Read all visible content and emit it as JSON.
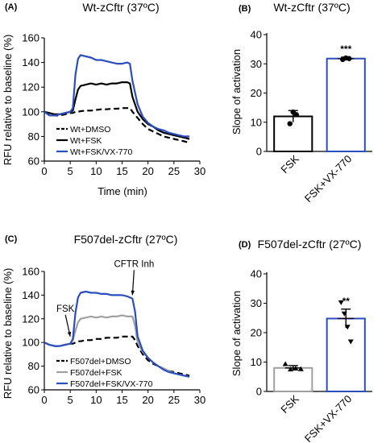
{
  "chart_data": [
    {
      "panel": "(A)",
      "type": "line",
      "title": "Wt-zCftr (37ºC)",
      "xlabel": "Time (min)",
      "ylabel": "RFU relative to baseline (%)",
      "xlim": [
        0,
        30
      ],
      "ylim": [
        60,
        160
      ],
      "xticks": [
        "0",
        "5",
        "10",
        "15",
        "20",
        "25",
        "30"
      ],
      "yticks": [
        "60",
        "80",
        "100",
        "120",
        "140",
        "160"
      ],
      "legend_position": "bottom-left",
      "annotations": [],
      "series": [
        {
          "name": "Wt+DMSO",
          "color": "#000000",
          "dash": "dashed",
          "x": [
            0,
            1,
            2,
            3,
            4,
            5,
            5.5,
            6,
            6.5,
            7,
            8,
            9,
            10,
            11,
            12,
            13,
            14,
            15,
            16,
            16.5,
            17,
            18,
            19,
            20,
            21,
            22,
            23,
            24,
            25,
            26,
            27,
            28
          ],
          "y": [
            100,
            98,
            97,
            97,
            98,
            99,
            99,
            100,
            100,
            100.5,
            101,
            101,
            101.5,
            102,
            102,
            102.5,
            102.5,
            103,
            103,
            103,
            100,
            95,
            90,
            86,
            84,
            82,
            80,
            79,
            78,
            77,
            76,
            75
          ]
        },
        {
          "name": "Wt+FSK",
          "color": "#000000",
          "dash": "solid",
          "x": [
            0,
            1,
            2,
            3,
            4,
            5,
            5.5,
            6,
            6.5,
            7,
            8,
            9,
            10,
            11,
            12,
            13,
            14,
            15,
            16,
            16.5,
            17,
            18,
            19,
            20,
            21,
            22,
            23,
            24,
            25,
            26,
            27,
            28
          ],
          "y": [
            100,
            99,
            98,
            98,
            99,
            100,
            101,
            110,
            118,
            121,
            122,
            123,
            122,
            123,
            122,
            123,
            123,
            124,
            124,
            123,
            112,
            100,
            94,
            90,
            88,
            85,
            83,
            82,
            81,
            80,
            79,
            78
          ]
        },
        {
          "name": "Wt+FSK/VX-770",
          "color": "#2a4dbf",
          "dash": "solid",
          "x": [
            0,
            1,
            2,
            3,
            4,
            5,
            5.5,
            6,
            6.5,
            7,
            8,
            9,
            10,
            11,
            12,
            13,
            14,
            15,
            16,
            16.5,
            17,
            18,
            19,
            20,
            21,
            22,
            23,
            24,
            25,
            26,
            27,
            28
          ],
          "y": [
            100,
            97,
            97,
            98,
            99,
            100,
            103,
            130,
            143,
            146,
            145,
            144,
            142,
            142,
            141,
            140,
            139,
            139,
            140,
            139,
            125,
            106,
            96,
            91,
            88,
            86,
            85,
            83,
            82,
            81,
            80,
            80
          ]
        }
      ]
    },
    {
      "panel": "(B)",
      "type": "bar",
      "title": "Wt-zCftr (37ºC)",
      "xlabel": "",
      "ylabel": "Slope of activation",
      "ylim": [
        0,
        40
      ],
      "yticks": [
        "0",
        "10",
        "20",
        "30",
        "40"
      ],
      "categories": [
        "FSK",
        "FSK+VX-770"
      ],
      "values": [
        12,
        31.8
      ],
      "errors": [
        2,
        0.5
      ],
      "bar_colors": [
        "#000000",
        "#2a4dbf"
      ],
      "points": [
        [
          9.5,
          13.5,
          12.6
        ],
        [
          31.5,
          32,
          31.8
        ]
      ],
      "significance": [
        "",
        "***"
      ]
    },
    {
      "panel": "(C)",
      "type": "line",
      "title": "F507del-zCftr (27ºC)",
      "xlabel": "",
      "ylabel": "RFU relative to baseline (%)",
      "xlim": [
        0,
        30
      ],
      "ylim": [
        60,
        160
      ],
      "xticks": [
        "0",
        "5",
        "10",
        "15",
        "20",
        "25",
        "30"
      ],
      "yticks": [
        "60",
        "80",
        "100",
        "120",
        "140",
        "160"
      ],
      "legend_position": "bottom-left",
      "annotations": [
        {
          "label": "FSK",
          "x": 5,
          "y": 103
        },
        {
          "label": "CFTR Inh",
          "x": 17,
          "y": 138
        }
      ],
      "series": [
        {
          "name": "F507del+DMSO",
          "color": "#000000",
          "dash": "dashed",
          "x": [
            0,
            1,
            2,
            3,
            4,
            5,
            5.5,
            6,
            6.5,
            7,
            8,
            9,
            10,
            11,
            12,
            13,
            14,
            15,
            16,
            17,
            17.5,
            18,
            19,
            20,
            21,
            22,
            23,
            24,
            25,
            26,
            27,
            28
          ],
          "y": [
            100,
            98,
            97,
            97,
            98,
            99,
            99,
            100,
            101,
            101,
            102,
            102,
            103,
            103,
            104,
            104,
            104,
            105,
            105,
            105,
            102,
            97,
            90,
            85,
            82,
            80,
            78,
            76,
            75,
            74,
            73,
            72
          ]
        },
        {
          "name": "F507del+FSK",
          "color": "#a0a0a0",
          "dash": "solid",
          "x": [
            0,
            1,
            2,
            3,
            4,
            5,
            5.5,
            6,
            6.5,
            7,
            8,
            9,
            10,
            11,
            12,
            13,
            14,
            15,
            16,
            17,
            17.5,
            18,
            19,
            20,
            21,
            22,
            23,
            24,
            25,
            26,
            27,
            28
          ],
          "y": [
            100,
            98,
            97,
            97,
            98,
            99,
            102,
            110,
            117,
            120,
            121,
            122,
            121,
            122,
            121,
            122,
            122,
            123,
            122,
            122,
            114,
            100,
            92,
            87,
            83,
            80,
            78,
            76,
            74,
            73,
            72,
            71
          ]
        },
        {
          "name": "F507del+FSK/VX-770",
          "color": "#2a4dbf",
          "dash": "solid",
          "x": [
            0,
            1,
            2,
            3,
            4,
            5,
            5.5,
            6,
            6.5,
            7,
            8,
            9,
            10,
            11,
            12,
            13,
            14,
            15,
            16,
            17,
            17.5,
            18,
            19,
            20,
            21,
            22,
            23,
            24,
            25,
            26,
            27,
            28
          ],
          "y": [
            100,
            98,
            97,
            97,
            98,
            99,
            103,
            125,
            138,
            142,
            143,
            142,
            142,
            141,
            141,
            140,
            140,
            140,
            139,
            137,
            126,
            105,
            93,
            87,
            83,
            80,
            77,
            75,
            74,
            73,
            72,
            71
          ]
        }
      ]
    },
    {
      "panel": "(D)",
      "type": "bar",
      "title": "F507del-zCftr (27ºC)",
      "xlabel": "",
      "ylabel": "Slope of activation",
      "ylim": [
        0,
        40
      ],
      "yticks": [
        "0",
        "10",
        "20",
        "30",
        "40"
      ],
      "categories": [
        "FSK",
        "FSK+VX-770"
      ],
      "values": [
        8,
        24.8
      ],
      "errors": [
        0.8,
        3.2
      ],
      "bar_colors": [
        "#a0a0a0",
        "#2a4dbf"
      ],
      "points": [
        [
          9.3,
          7.5,
          7.8,
          7.6
        ],
        [
          30.3,
          26.5,
          22,
          17
        ]
      ],
      "significance": [
        "",
        "**"
      ]
    }
  ]
}
